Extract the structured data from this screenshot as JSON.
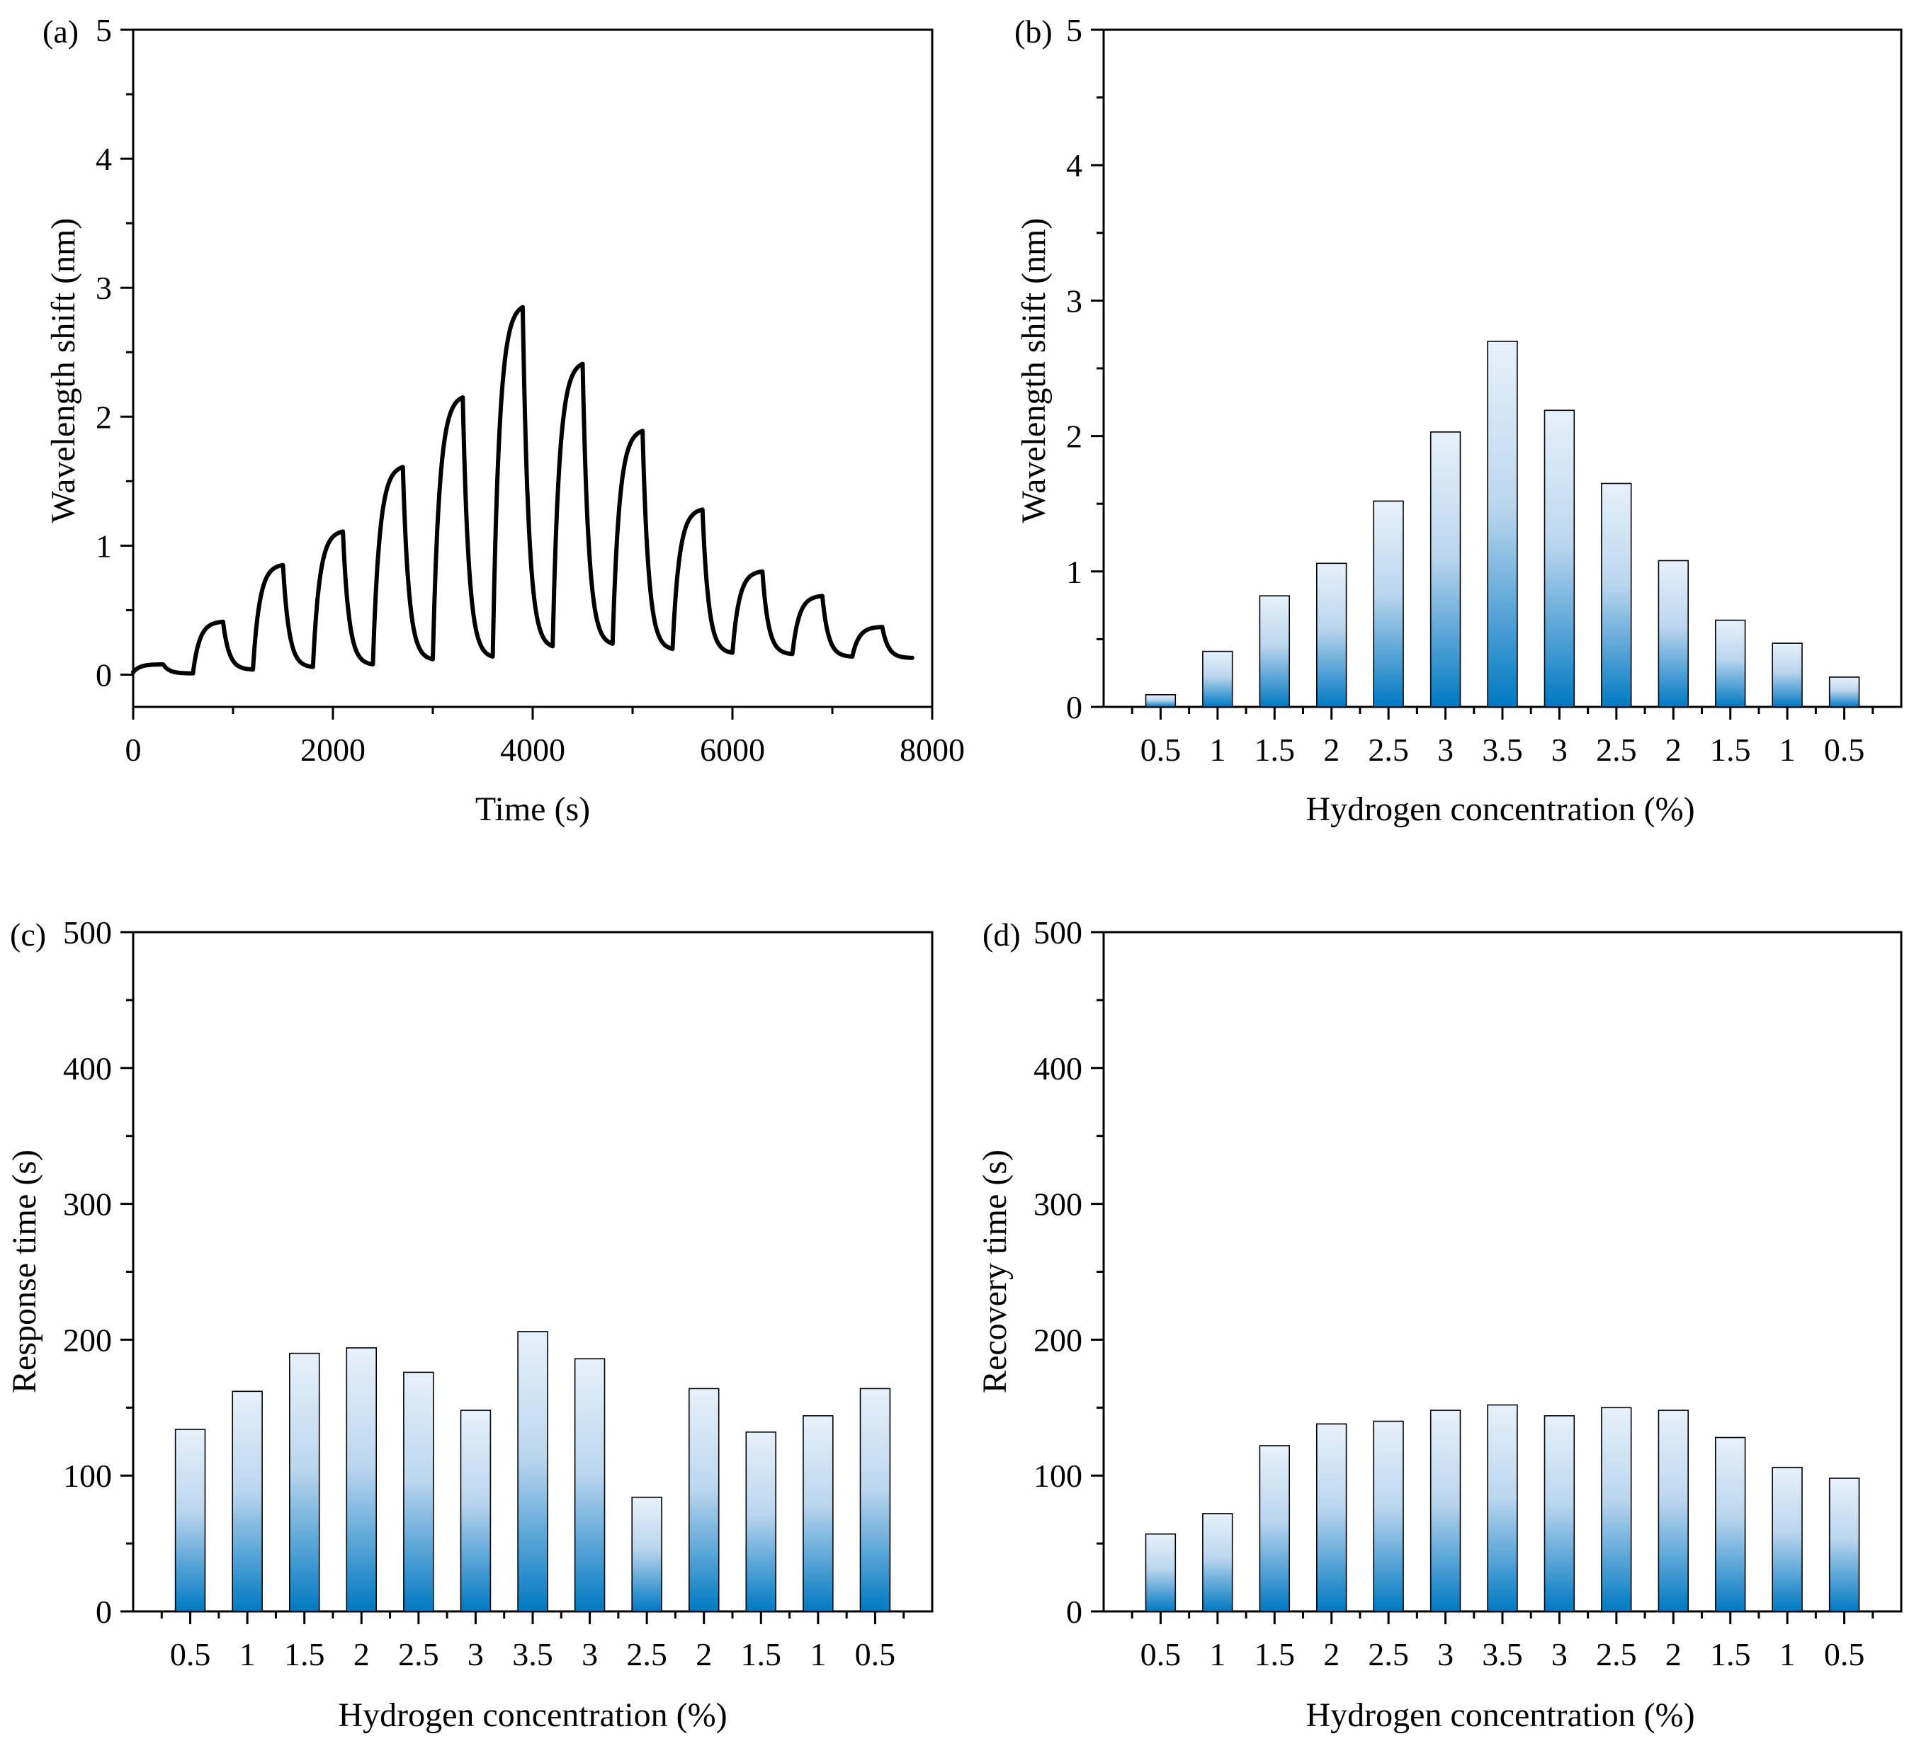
{
  "colors": {
    "bar_top": "#e6f1fb",
    "bar_bottom": "#0079c2",
    "line": "#000000",
    "axis": "#000000"
  },
  "chart_data": [
    {
      "id": "a",
      "panel_label": "(a)",
      "type": "line",
      "xlabel": "Time (s)",
      "ylabel": "Wavelength shift (nm)",
      "xlim": [
        0,
        8000
      ],
      "ylim": [
        -0.25,
        5
      ],
      "xticks": [
        0,
        2000,
        4000,
        6000,
        8000
      ],
      "yticks": [
        0,
        1,
        2,
        3,
        4,
        5
      ],
      "xtick_labels": [
        "0",
        "2000",
        "4000",
        "6000",
        "8000"
      ],
      "ytick_labels": [
        "0",
        "1",
        "2",
        "3",
        "4",
        "5"
      ],
      "series": [
        {
          "name": "Wavelength shift",
          "cycles": [
            {
              "on": 0,
              "off": 300,
              "start": 0.02,
              "peak": 0.08,
              "end": 0.01
            },
            {
              "on": 600,
              "off": 900,
              "start": 0.02,
              "peak": 0.41,
              "end": 0.04
            },
            {
              "on": 1200,
              "off": 1500,
              "start": 0.05,
              "peak": 0.85,
              "end": 0.06
            },
            {
              "on": 1800,
              "off": 2100,
              "start": 0.06,
              "peak": 1.11,
              "end": 0.08
            },
            {
              "on": 2400,
              "off": 2700,
              "start": 0.08,
              "peak": 1.61,
              "end": 0.12
            },
            {
              "on": 3000,
              "off": 3300,
              "start": 0.12,
              "peak": 2.15,
              "end": 0.14
            },
            {
              "on": 3600,
              "off": 3900,
              "start": 0.14,
              "peak": 2.85,
              "end": 0.22
            },
            {
              "on": 4200,
              "off": 4500,
              "start": 0.22,
              "peak": 2.41,
              "end": 0.24
            },
            {
              "on": 4800,
              "off": 5100,
              "start": 0.24,
              "peak": 1.89,
              "end": 0.2
            },
            {
              "on": 5400,
              "off": 5700,
              "start": 0.2,
              "peak": 1.28,
              "end": 0.17
            },
            {
              "on": 6000,
              "off": 6300,
              "start": 0.17,
              "peak": 0.8,
              "end": 0.16
            },
            {
              "on": 6600,
              "off": 6900,
              "start": 0.16,
              "peak": 0.61,
              "end": 0.14
            },
            {
              "on": 7200,
              "off": 7500,
              "start": 0.14,
              "peak": 0.37,
              "end": 0.13
            }
          ],
          "end_time": 7800
        }
      ]
    },
    {
      "id": "b",
      "panel_label": "(b)",
      "type": "bar",
      "xlabel": "Hydrogen concentration (%)",
      "ylabel": "Wavelength shift (nm)",
      "ylim": [
        0,
        5
      ],
      "yticks": [
        0,
        1,
        2,
        3,
        4,
        5
      ],
      "ytick_labels": [
        "0",
        "1",
        "2",
        "3",
        "4",
        "5"
      ],
      "categories": [
        "0.5",
        "1",
        "1.5",
        "2",
        "2.5",
        "3",
        "3.5",
        "3",
        "2.5",
        "2",
        "1.5",
        "1",
        "0.5"
      ],
      "values": [
        0.09,
        0.41,
        0.82,
        1.06,
        1.52,
        2.03,
        2.7,
        2.19,
        1.65,
        1.08,
        0.64,
        0.47,
        0.22
      ]
    },
    {
      "id": "c",
      "panel_label": "(c)",
      "type": "bar",
      "xlabel": "Hydrogen concentration (%)",
      "ylabel": "Response time (s)",
      "ylim": [
        0,
        500
      ],
      "yticks": [
        0,
        100,
        200,
        300,
        400,
        500
      ],
      "ytick_labels": [
        "0",
        "100",
        "200",
        "300",
        "400",
        "500"
      ],
      "categories": [
        "0.5",
        "1",
        "1.5",
        "2",
        "2.5",
        "3",
        "3.5",
        "3",
        "2.5",
        "2",
        "1.5",
        "1",
        "0.5"
      ],
      "values": [
        134,
        162,
        190,
        194,
        176,
        148,
        206,
        186,
        84,
        164,
        132,
        144,
        164
      ]
    },
    {
      "id": "d",
      "panel_label": "(d)",
      "type": "bar",
      "xlabel": "Hydrogen concentration (%)",
      "ylabel": "Recovery time (s)",
      "ylim": [
        0,
        500
      ],
      "yticks": [
        0,
        100,
        200,
        300,
        400,
        500
      ],
      "ytick_labels": [
        "0",
        "100",
        "200",
        "300",
        "400",
        "500"
      ],
      "categories": [
        "0.5",
        "1",
        "1.5",
        "2",
        "2.5",
        "3",
        "3.5",
        "3",
        "2.5",
        "2",
        "1.5",
        "1",
        "0.5"
      ],
      "values": [
        57,
        72,
        122,
        138,
        140,
        148,
        152,
        144,
        150,
        148,
        128,
        106,
        98
      ]
    }
  ]
}
